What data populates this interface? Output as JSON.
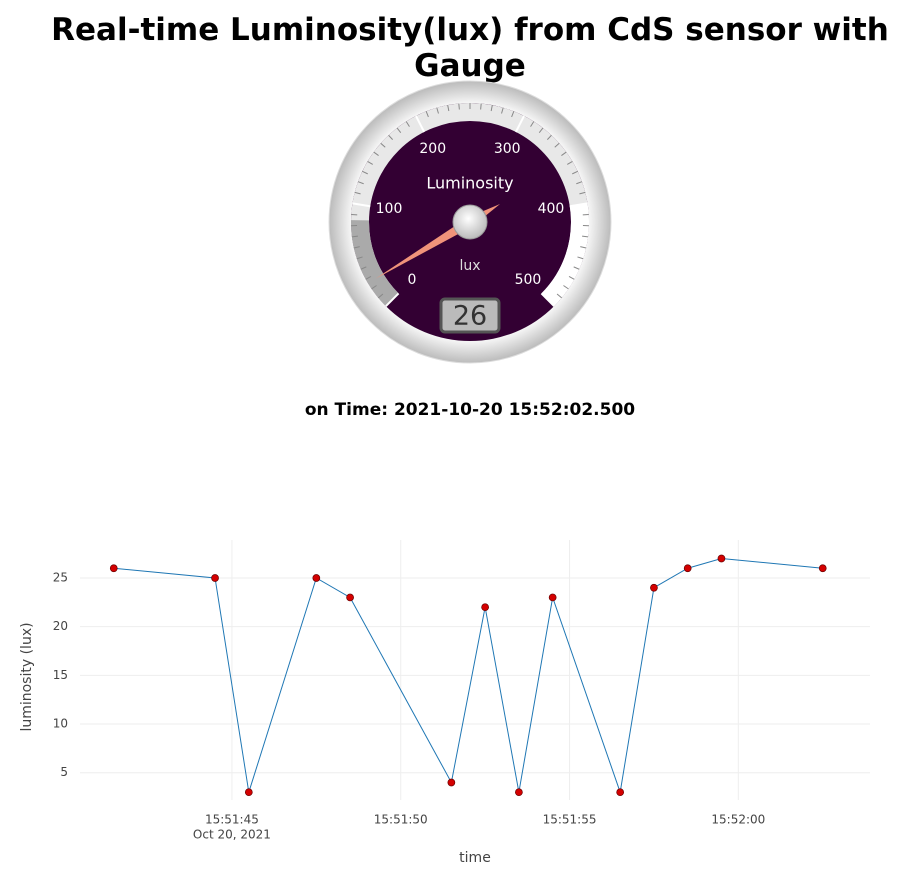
{
  "title": "Real-time Luminosity(lux) from CdS sensor with Gauge",
  "time_text": "on Time: 2021-10-20 15:52:02.500",
  "chart_data": [
    {
      "type": "gauge",
      "title": "Luminosity",
      "unit": "lux",
      "value": 26,
      "lim": [
        0,
        500
      ],
      "ticks": [
        0,
        100,
        200,
        300,
        400,
        500
      ],
      "color": "#f0937a",
      "dial_color": "#330033"
    },
    {
      "type": "line",
      "xlabel": "time",
      "ylabel": "luminosity (lux)",
      "x": [
        "2021-10-20 15:51:41.5",
        "2021-10-20 15:51:44.5",
        "2021-10-20 15:51:45.5",
        "2021-10-20 15:51:47.5",
        "2021-10-20 15:51:48.5",
        "2021-10-20 15:51:51.5",
        "2021-10-20 15:51:52.5",
        "2021-10-20 15:51:53.5",
        "2021-10-20 15:51:54.5",
        "2021-10-20 15:51:56.5",
        "2021-10-20 15:51:57.5",
        "2021-10-20 15:51:58.5",
        "2021-10-20 15:51:59.5",
        "2021-10-20 15:52:02.5"
      ],
      "values": [
        26,
        25,
        3,
        25,
        23,
        4,
        22,
        3,
        23,
        3,
        24,
        26,
        27,
        26
      ],
      "color": "#1f77b4",
      "marker_color": "#d40000",
      "xlim": [
        "2021-10-20 15:51:40.5",
        "2021-10-20 15:52:03.9"
      ],
      "xticks": [
        {
          "value": "2021-10-20 15:51:45",
          "label": "15:51:45"
        },
        {
          "value": "2021-10-20 15:51:50",
          "label": "15:51:50"
        },
        {
          "value": "2021-10-20 15:51:55",
          "label": "15:51:55"
        },
        {
          "value": "2021-10-20 15:52:00",
          "label": "15:52:00"
        }
      ],
      "x_date_label": "Oct 20, 2021",
      "ylim": [
        2.2,
        28.9
      ],
      "yticks": [
        5,
        10,
        15,
        20,
        25
      ],
      "grid": true
    }
  ]
}
